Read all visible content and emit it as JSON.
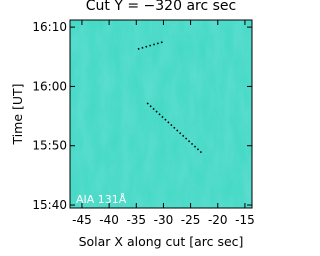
{
  "chart_data": {
    "type": "line",
    "title": "Cut Y = −320 arc sec",
    "x_label": "Solar X along cut [arc sec]",
    "y_label": "Time [UT]",
    "annotation": "AIA 131Å",
    "xlim": [
      -47.2,
      -13.7
    ],
    "xticks": [
      -45,
      -40,
      -35,
      -30,
      -25,
      -20,
      -15
    ],
    "ylim": [
      939.5,
      971.2
    ],
    "yticks": [
      {
        "value": 940,
        "label": "15:40"
      },
      {
        "value": 950,
        "label": "15:50"
      },
      {
        "value": 960,
        "label": "16:00"
      },
      {
        "value": 970,
        "label": "16:10"
      }
    ],
    "series": [
      {
        "color": "#000000",
        "x": [
          -34.7,
          -30.1
        ],
        "values": [
          966.3,
          967.5
        ]
      },
      {
        "color": "#000000",
        "x": [
          -33.0,
          -22.7
        ],
        "values": [
          957.2,
          948.6
        ]
      }
    ]
  }
}
